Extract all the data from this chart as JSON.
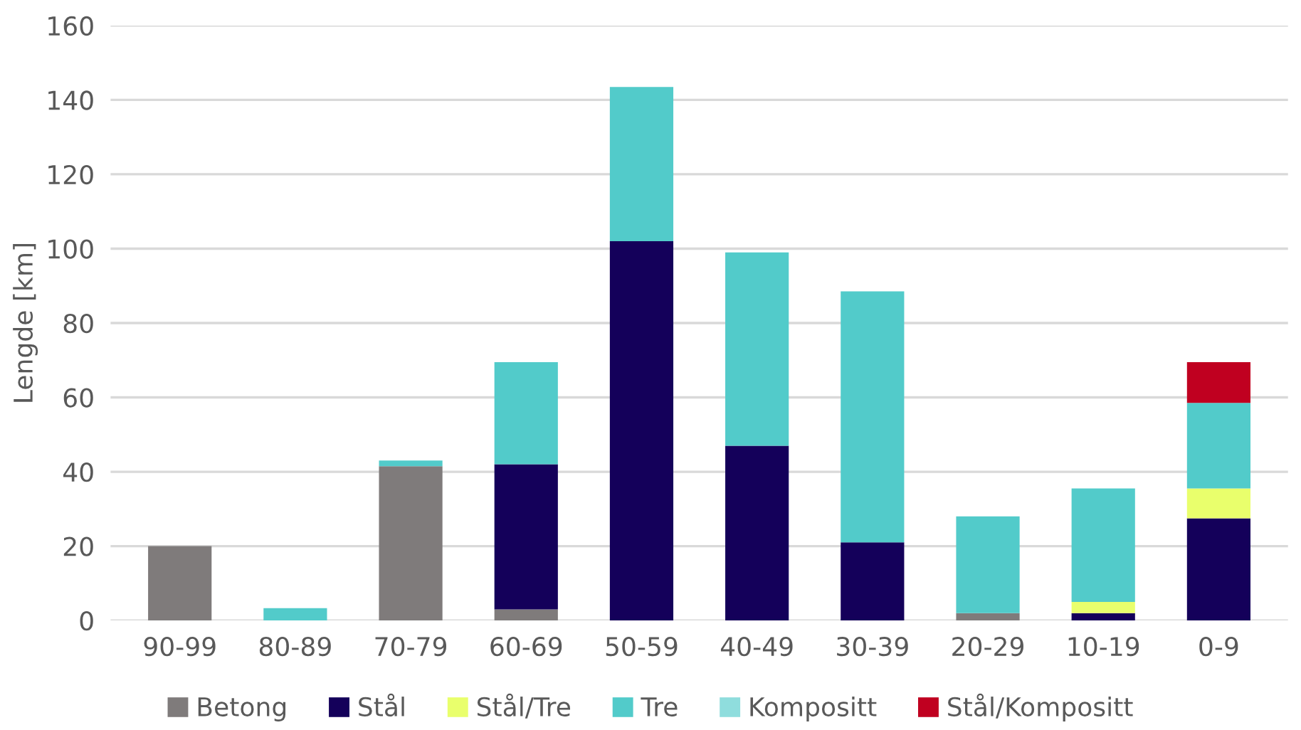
{
  "chart_data": {
    "type": "bar",
    "stacked": true,
    "ylabel": "Lengde [km]",
    "categories": [
      "90-99",
      "80-89",
      "70-79",
      "60-69",
      "50-59",
      "40-49",
      "30-39",
      "20-29",
      "10-19",
      "0-9"
    ],
    "series": [
      {
        "name": "Betong",
        "color": "#7f7b7b",
        "values": [
          20,
          0,
          41.5,
          3,
          0,
          0,
          0,
          2,
          0,
          0
        ]
      },
      {
        "name": "Stål",
        "color": "#14005a",
        "values": [
          0,
          0,
          0,
          39,
          102,
          47,
          21,
          0,
          2,
          27.5
        ]
      },
      {
        "name": "Stål/Tre",
        "color": "#e9ff6c",
        "values": [
          0,
          0,
          0,
          0,
          0,
          0,
          0,
          0,
          3,
          8
        ]
      },
      {
        "name": "Tre",
        "color": "#52cbca",
        "values": [
          0,
          3.3,
          1.5,
          27.5,
          41.5,
          52,
          67.5,
          26,
          30.5,
          23
        ]
      },
      {
        "name": "Kompositt",
        "color": "#8fdddd",
        "values": [
          0,
          0,
          0,
          0,
          0,
          0,
          0,
          0,
          0,
          0
        ]
      },
      {
        "name": "Stål/Kompositt",
        "color": "#c00020",
        "values": [
          0,
          0,
          0,
          0,
          0,
          0,
          0,
          0,
          0,
          11
        ]
      }
    ],
    "ylim": [
      0,
      160
    ],
    "yticks": [
      0,
      20,
      40,
      60,
      80,
      100,
      120,
      140,
      160
    ],
    "grid": "y",
    "legend": "bottom"
  }
}
